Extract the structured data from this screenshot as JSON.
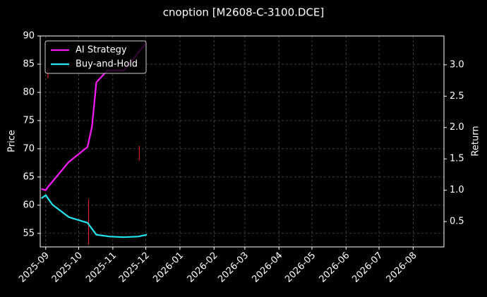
{
  "chart_data": {
    "type": "line",
    "title": "cnoption [M2608-C-3100.DCE]",
    "ylabel": "Price",
    "y2label": "Return",
    "xlim": [
      "2025-08-27",
      "2026-08-29"
    ],
    "xticks": [
      {
        "value": "2025-09-01",
        "label": "2025-09"
      },
      {
        "value": "2025-10-01",
        "label": "2025-10"
      },
      {
        "value": "2025-11-01",
        "label": "2025-11"
      },
      {
        "value": "2025-12-01",
        "label": "2025-12"
      },
      {
        "value": "2026-01-01",
        "label": "2026-01"
      },
      {
        "value": "2026-02-01",
        "label": "2026-02"
      },
      {
        "value": "2026-03-01",
        "label": "2026-03"
      },
      {
        "value": "2026-04-01",
        "label": "2026-04"
      },
      {
        "value": "2026-05-01",
        "label": "2026-05"
      },
      {
        "value": "2026-06-01",
        "label": "2026-06"
      },
      {
        "value": "2026-07-01",
        "label": "2026-07"
      },
      {
        "value": "2026-08-01",
        "label": "2026-08"
      }
    ],
    "ylim": [
      52.6,
      90
    ],
    "yticks": [
      55,
      60,
      65,
      70,
      75,
      80,
      85,
      90
    ],
    "y2lim": [
      0.095,
      3.46
    ],
    "y2ticks": [
      0.5,
      1.0,
      1.5,
      2.0,
      2.5,
      3.0
    ],
    "grid": true,
    "legend": "upper-left",
    "price_ranges": {
      "color": "#ff2020",
      "x": [
        "2025-09-03",
        "2025-10-10",
        "2025-11-25"
      ],
      "low": [
        82.5,
        53,
        67.9
      ],
      "high": [
        84.1,
        61,
        70.5
      ]
    },
    "series": [
      {
        "name": "AI Strategy",
        "color": "#ff1aff",
        "axis": "y2",
        "x": [
          "2025-08-28",
          "2025-09-01",
          "2025-09-03",
          "2025-09-22",
          "2025-10-09",
          "2025-10-13",
          "2025-10-17",
          "2025-10-27",
          "2025-11-11",
          "2025-12-01"
        ],
        "values": [
          1.02,
          1.0,
          1.05,
          1.45,
          1.69,
          2.01,
          2.72,
          2.91,
          2.91,
          3.34
        ]
      },
      {
        "name": "Buy-and-Hold",
        "color": "#22e5ee",
        "axis": "y2",
        "x": [
          "2025-08-28",
          "2025-09-01",
          "2025-09-07",
          "2025-09-22",
          "2025-10-09",
          "2025-10-17",
          "2025-10-29",
          "2025-11-11",
          "2025-11-24",
          "2025-12-02"
        ],
        "values": [
          0.87,
          0.92,
          0.77,
          0.57,
          0.48,
          0.29,
          0.26,
          0.25,
          0.26,
          0.29
        ]
      }
    ]
  }
}
